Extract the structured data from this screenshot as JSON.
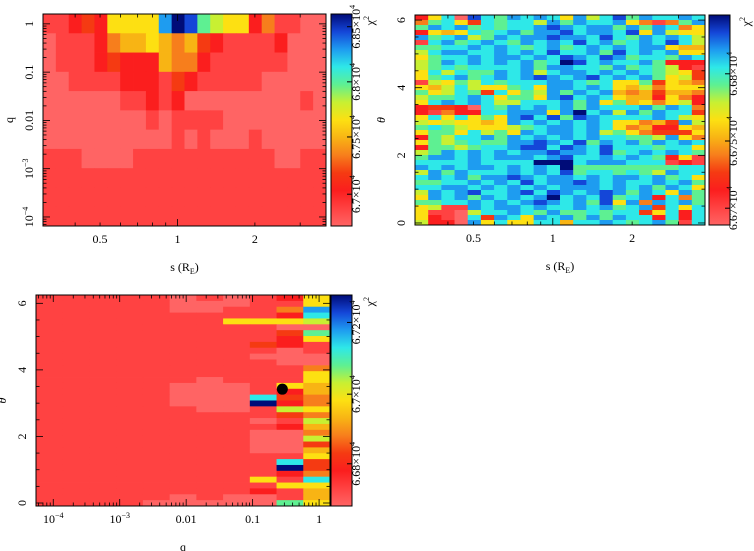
{
  "colormap": [
    "#ff6464",
    "#ff4242",
    "#fb1e1e",
    "#f53a12",
    "#f77e1c",
    "#f8b414",
    "#fde012",
    "#c8f032",
    "#5ef092",
    "#2ee8e8",
    "#1e9cf0",
    "#1446d8",
    "#000c78"
  ],
  "chart_data": [
    {
      "type": "heatmap",
      "xlabel": "s (R",
      "xlabel_sub": "E",
      "xlabel_end": ")",
      "ylabel": "q",
      "xscale": "log",
      "xlim": [
        0.3,
        3.78
      ],
      "yscale": "log",
      "ylim": [
        6.5e-05,
        1.6
      ],
      "x_ticks": [
        {
          "value": 0.5,
          "label": "0.5"
        },
        {
          "value": 1,
          "label": "1"
        },
        {
          "value": 2,
          "label": "2"
        }
      ],
      "y_ticks": [
        {
          "value": 1,
          "label": "1"
        },
        {
          "value": 0.1,
          "label": "0.1"
        },
        {
          "value": 0.01,
          "label": "0.01"
        },
        {
          "value": 0.001,
          "label": [
            "10",
            "−3"
          ]
        },
        {
          "value": 0.0001,
          "label": [
            "10",
            "−4"
          ]
        }
      ],
      "colorbar": {
        "label": [
          "χ",
          "2"
        ],
        "ticks": [
          {
            "level": 0.15,
            "label": [
              "6.7×10",
              "4"
            ]
          },
          {
            "level": 0.42,
            "label": [
              "6.75×10",
              "4"
            ]
          },
          {
            "level": 0.68,
            "label": [
              "6.8×10",
              "4"
            ]
          },
          {
            "level": 0.94,
            "label": [
              "6.85×10",
              "4"
            ]
          }
        ]
      },
      "grid_levels_hex_top_to_bottom": [
        "112326666acb8766241100",
        "0111245565453211112000",
        "0111232225442111111000",
        "0011112221321111100000",
        "0000001121200000000010",
        "0000000010111100000000",
        "0000000000101000100000",
        "1110000111111111110011",
        "1111111111111111111111",
        "1111111111111111111111",
        "1111111111111111111111"
      ]
    },
    {
      "type": "heatmap",
      "xlabel": "s (R",
      "xlabel_sub": "E",
      "xlabel_end": ")",
      "ylabel": "θ",
      "xscale": "log",
      "xlim": [
        0.3,
        3.78
      ],
      "yscale": "linear",
      "ylim": [
        -0.06,
        6.15
      ],
      "x_ticks": [
        {
          "value": 0.5,
          "label": "0.5"
        },
        {
          "value": 1,
          "label": "1"
        },
        {
          "value": 2,
          "label": "2"
        }
      ],
      "y_ticks": [
        {
          "value": 0,
          "label": "0"
        },
        {
          "value": 2,
          "label": "2"
        },
        {
          "value": 4,
          "label": "4"
        },
        {
          "value": 6,
          "label": "6"
        }
      ],
      "colorbar": {
        "label": [
          "χ",
          "2"
        ],
        "ticks": [
          {
            "level": 0.08,
            "label": [
              "6.67×10",
              "4"
            ]
          },
          {
            "level": 0.4,
            "label": [
              "6.675×10",
              "4"
            ]
          },
          {
            "level": 0.72,
            "label": [
              "6.68×10",
              "4"
            ]
          }
        ]
      },
      "grid_levels_hex_top_to_bottom": [
        "2690b98a9a96a79b8a99a9",
        "4896398997a8a99a64148a",
        "8a9a89899aba9aa8a8a946",
        "2656989a8aab9aa9b6a766",
        "a89a78a9aabaa9b98a9a97",
        "19a89a98a9a9b9a89a9b97",
        "8899a9a989a89a9a9aa655",
        "79aa99a9a9b99a8b9a9a66",
        "6899a9aa9a9ba9ba8998a9",
        "78a9a9a9a89cb9a99a8222",
        "78989999a8aa998a898721",
        "697988a9a79aa9a9a98763",
        "689a89a9aba9ab9a9a8673",
        "1768798999aa9896683654",
        "6579766896aa9a96574666",
        "8679839687a8a9a5453554",
        "7889a96886ab9a96552642",
        "69a9a977999a8a68564672",
        "2332098a9a9a8a999a8a94",
        "2142299aaa6ac9a7a8a993",
        "6969686ab9b8ba9999a976",
        "7676656a9a9a9a966453a7",
        "8987666789aa9a96452265",
        "68869786a9aa9a78643336",
        "28799a8a9a9a9a99887a64",
        "6878988aaba9b8a9a8a9a9",
        "2887899abb9ba9b9998996",
        "78a9a9a9aabaa9b89a9a98",
        "8aa9a9aaa9ab99a9a98261",
        "9999a9999ccc9aaa999121",
        "a9a9aa9a9a9c8888888899",
        "7a8a999a9a9b8998987a99",
        "9a9a8aaba9aa9a9aa9a896",
        "8899a9a9b9aaba9a99a9a8",
        "99aa9a9a9a9aaa9a9a8a96",
        "7a9ab99ab9ba9aba8a96a8",
        "6a9a8a9a9ac9a9b89a2948",
        "8899a9a9aba9a8b6a4a9a8",
        "6711a9aa9a99a9a89a3969",
        "6110799a98a88989936929",
        "621093a96a9a8a8a992929",
        "7220a696699599a989a819"
      ]
    },
    {
      "type": "heatmap",
      "xlabel": "q",
      "ylabel": "θ",
      "xscale": "log",
      "xlim": [
        5.5e-05,
        1.46
      ],
      "yscale": "linear",
      "ylim": [
        -0.09,
        6.25
      ],
      "x_ticks": [
        {
          "value": 0.0001,
          "label": [
            "10",
            "−4"
          ]
        },
        {
          "value": 0.001,
          "label": [
            "10",
            "−3"
          ]
        },
        {
          "value": 0.01,
          "label": "0.01"
        },
        {
          "value": 0.1,
          "label": "0.1"
        },
        {
          "value": 1,
          "label": "1"
        }
      ],
      "y_ticks": [
        {
          "value": 0,
          "label": "0"
        },
        {
          "value": 2,
          "label": "2"
        },
        {
          "value": 4,
          "label": "4"
        },
        {
          "value": 6,
          "label": "6"
        }
      ],
      "colorbar": {
        "label": [
          "χ",
          "2"
        ],
        "ticks": [
          {
            "level": 0.2,
            "label": [
              "6.68×10",
              "4"
            ]
          },
          {
            "level": 0.53,
            "label": [
              "6.7×10",
              "4"
            ]
          },
          {
            "level": 0.87,
            "label": [
              "6.72×10",
              "4"
            ]
          }
        ]
      },
      "marker": {
        "q": 0.28,
        "theta": 3.42
      },
      "grid_levels_hex_top_to_bottom": [
        "11111010126",
        "11111000116",
        "1111100114a",
        "11111111129",
        "11111116667",
        "11111111100",
        "11111111138",
        "11111111126",
        "11111111321",
        "11111111101",
        "11111111000",
        "11111111100",
        "11111111114",
        "11111111116",
        "11111101116",
        "11111000165",
        "11111000125",
        "11111000934",
        "11111000c24",
        "11111100176",
        "11111111134",
        "11111111017",
        "11111111125",
        "11111111004",
        "11111111007",
        "11111111003",
        "11111111005",
        "11111111116",
        "11111111193",
        "111111111c3",
        "11111111124",
        "11111111619",
        "11111111166",
        "11111111215",
        "11111010015",
        "11110000086"
      ]
    }
  ]
}
